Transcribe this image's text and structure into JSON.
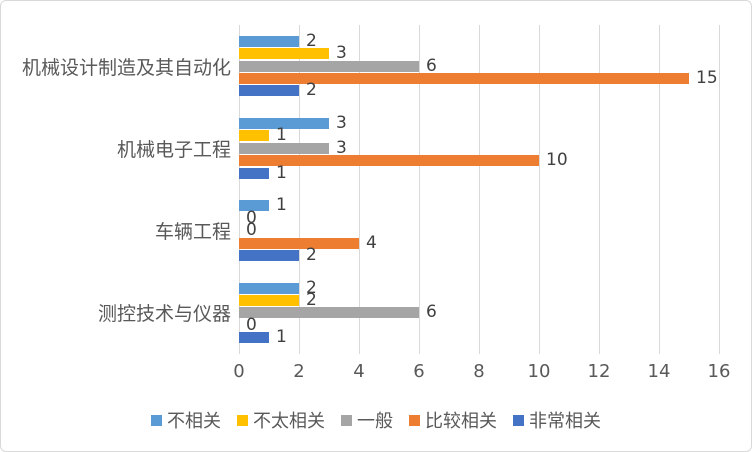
{
  "chart": {
    "background": "#FFFFFF",
    "border_color": "#D9D9D9",
    "gridline_color": "#D9D9D9",
    "axis_text_color": "#595959",
    "data_label_color": "#404040"
  },
  "chart_data": {
    "type": "bar",
    "orientation": "horizontal",
    "title": "",
    "categories": [
      "机械设计制造及其自动化",
      "机械电子工程",
      "车辆工程",
      "测控技术与仪器"
    ],
    "series": [
      {
        "name": "不相关",
        "color": "#5B9BD5",
        "values": [
          2,
          3,
          1,
          2
        ]
      },
      {
        "name": "不太相关",
        "color": "#FFC000",
        "values": [
          3,
          1,
          0,
          2
        ]
      },
      {
        "name": "一般",
        "color": "#A5A5A5",
        "values": [
          6,
          3,
          0,
          6
        ]
      },
      {
        "name": "比较相关",
        "color": "#ED7D31",
        "values": [
          15,
          10,
          4,
          0
        ]
      },
      {
        "name": "非常相关",
        "color": "#4472C4",
        "values": [
          2,
          1,
          2,
          1
        ]
      }
    ],
    "xlim": [
      0,
      16
    ],
    "xticks": [
      0,
      2,
      4,
      6,
      8,
      10,
      12,
      14,
      16
    ],
    "grid": true,
    "data_labels": true,
    "legend_position": "bottom"
  }
}
